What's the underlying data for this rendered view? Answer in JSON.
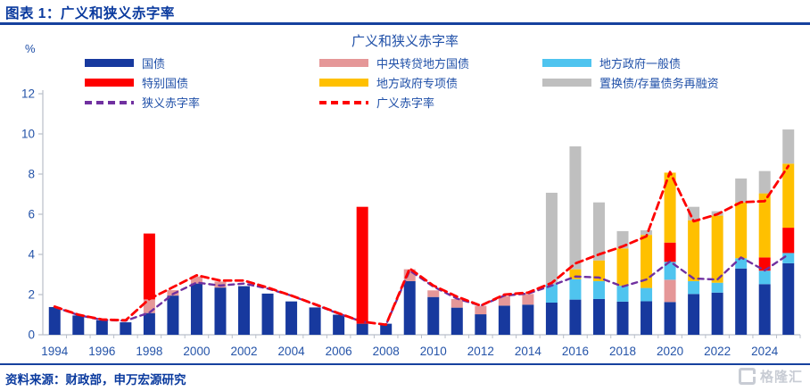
{
  "header": {
    "title": "图表 1：广义和狭义赤字率"
  },
  "chart": {
    "title": "广义和狭义赤字率",
    "y_unit": "%"
  },
  "source": {
    "text": "资料来源：财政部，申万宏源研究"
  },
  "watermark": {
    "text": "格隆汇"
  },
  "colors": {
    "treasury_bond": "#17399E",
    "central_onlent_local": "#E59798",
    "local_general_bond": "#4FC4EF",
    "special_treasury_bond": "#FE0000",
    "local_special_bond": "#FFC000",
    "swap_refinancing_bond": "#BFBFBF",
    "narrow_deficit_line": "#7030A0",
    "broad_deficit_line": "#FE0000",
    "header_blue": "#0a3a9e",
    "axis_text_blue": "#2453a8"
  },
  "chart_data": {
    "type": "bar",
    "subtype": "stacked-bars-with-dashed-lines",
    "title": "广义和狭义赤字率",
    "ylabel": "%",
    "ylim": [
      0,
      12
    ],
    "yticks": [
      0,
      2,
      4,
      6,
      8,
      10,
      12
    ],
    "xtick_step": 2,
    "grid": false,
    "legend_position": "top",
    "categories": [
      1994,
      1995,
      1996,
      1997,
      1998,
      1999,
      2000,
      2001,
      2002,
      2003,
      2004,
      2005,
      2006,
      2007,
      2008,
      2009,
      2010,
      2011,
      2012,
      2013,
      2014,
      2015,
      2016,
      2017,
      2018,
      2019,
      2020,
      2021,
      2022,
      2023,
      2024,
      2025
    ],
    "series": [
      {
        "name": "国债",
        "color": "#17399E",
        "values": [
          1.38,
          0.96,
          0.72,
          0.62,
          1.08,
          1.95,
          2.55,
          2.35,
          2.42,
          2.05,
          1.66,
          1.36,
          1.0,
          0.55,
          0.55,
          2.67,
          1.88,
          1.35,
          1.02,
          1.45,
          1.5,
          1.6,
          1.75,
          1.78,
          1.65,
          1.67,
          1.63,
          2.03,
          2.1,
          3.3,
          2.52,
          3.56
        ]
      },
      {
        "name": "中央转贷地方国债",
        "color": "#E59798",
        "values": [
          0,
          0,
          0,
          0,
          0.68,
          0.27,
          0.35,
          0.3,
          0,
          0,
          0,
          0,
          0,
          0,
          0,
          0.59,
          0.33,
          0.43,
          0.42,
          0.48,
          0.53,
          0,
          0,
          0,
          0,
          0,
          1.11,
          0,
          0,
          0,
          0,
          0
        ]
      },
      {
        "name": "地方政府一般债",
        "color": "#4FC4EF",
        "values": [
          0,
          0,
          0,
          0,
          0,
          0,
          0,
          0,
          0,
          0,
          0,
          0,
          0,
          0,
          0,
          0,
          0,
          0,
          0,
          0,
          0,
          0.92,
          1.02,
          0.89,
          0.79,
          0.66,
          0.89,
          0.64,
          0.49,
          0.51,
          0.67,
          0.51
        ]
      },
      {
        "name": "特别国债",
        "color": "#FE0000",
        "values": [
          0,
          0,
          0,
          0,
          3.28,
          0,
          0,
          0,
          0,
          0,
          0,
          0,
          0,
          5.82,
          0,
          0,
          0,
          0,
          0,
          0,
          0,
          0,
          0,
          0,
          0,
          0,
          0.96,
          0,
          0,
          0,
          0.66,
          1.26
        ]
      },
      {
        "name": "地方政府专项债",
        "color": "#FFC000",
        "values": [
          0,
          0,
          0,
          0,
          0,
          0,
          0,
          0,
          0,
          0,
          0,
          0,
          0,
          0,
          0,
          0,
          0,
          0,
          0,
          0,
          0,
          0,
          0.49,
          1.03,
          1.86,
          2.64,
          3.48,
          3.03,
          3.34,
          2.78,
          3.19,
          3.19
        ]
      },
      {
        "name": "置换债/存量债务再融资",
        "color": "#BFBFBF",
        "values": [
          0,
          0,
          0,
          0,
          0,
          0,
          0,
          0,
          0,
          0,
          0,
          0,
          0,
          0,
          0,
          0,
          0,
          0,
          0,
          0,
          0,
          4.55,
          6.12,
          2.89,
          0.86,
          0.23,
          0,
          0.67,
          0.22,
          1.19,
          1.11,
          1.7
        ]
      }
    ],
    "lines": [
      {
        "name": "狭义赤字率",
        "color": "#7030A0",
        "dash": "6 5",
        "width": 2.4,
        "values": [
          1.38,
          0.98,
          0.74,
          0.7,
          1.1,
          2.03,
          2.6,
          2.45,
          2.55,
          2.3,
          1.95,
          1.5,
          1.05,
          0.65,
          0.5,
          3.2,
          2.4,
          1.8,
          1.45,
          1.95,
          2.05,
          2.45,
          2.9,
          2.85,
          2.4,
          2.75,
          3.65,
          2.8,
          2.75,
          3.85,
          3.2,
          4.0
        ]
      },
      {
        "name": "广义赤字率",
        "color": "#FE0000",
        "dash": "8 5",
        "width": 2.8,
        "values": [
          1.4,
          1.0,
          0.76,
          0.72,
          1.78,
          2.37,
          2.96,
          2.7,
          2.7,
          2.35,
          1.95,
          1.52,
          1.07,
          0.65,
          0.5,
          3.3,
          2.45,
          1.9,
          1.45,
          2.0,
          2.1,
          2.58,
          3.55,
          4.0,
          4.4,
          4.9,
          8.1,
          5.65,
          6.0,
          6.6,
          6.65,
          8.4
        ]
      }
    ]
  }
}
